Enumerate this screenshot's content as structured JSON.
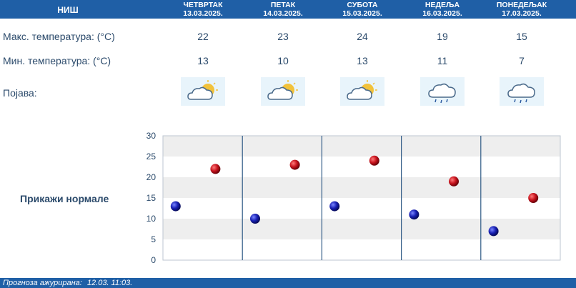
{
  "location": "НИШ",
  "days": [
    {
      "name": "ЧЕТВРТАК",
      "date": "13.03.2025.",
      "max": "22",
      "min": "13",
      "icon": "partly-cloudy-icon"
    },
    {
      "name": "ПЕТАК",
      "date": "14.03.2025.",
      "max": "23",
      "min": "10",
      "icon": "partly-cloudy-icon"
    },
    {
      "name": "СУБОТА",
      "date": "15.03.2025.",
      "max": "24",
      "min": "13",
      "icon": "partly-cloudy-icon"
    },
    {
      "name": "НЕДЕЉА",
      "date": "16.03.2025.",
      "max": "19",
      "min": "11",
      "icon": "rain-cloud-icon"
    },
    {
      "name": "ПОНЕДЕЉАК",
      "date": "17.03.2025.",
      "max": "15",
      "min": "7",
      "icon": "rain-cloud-icon"
    }
  ],
  "labels": {
    "max_temp": "Макс. температура: (°C)",
    "min_temp": "Мин. температура: (°C)",
    "phenomenon": "Појава:"
  },
  "show_normals": "Прикажи нормале",
  "footer": {
    "label": "Прогноза ажурирана:",
    "value": "12.03. 11:03."
  },
  "colors": {
    "header": "#1f5fa6",
    "max_marker": "#c8141e",
    "min_marker": "#1820b4"
  },
  "chart_data": {
    "type": "scatter",
    "categories": [
      "ЧЕТВРТАК",
      "ПЕТАК",
      "СУБОТА",
      "НЕДЕЉА",
      "ПОНЕДЕЉАК"
    ],
    "series": [
      {
        "values": [
          22,
          23,
          24,
          19,
          15
        ]
      },
      {
        "values": [
          13,
          10,
          13,
          11,
          7
        ]
      }
    ],
    "ylim": [
      0,
      30
    ],
    "yticks": [
      "0",
      "5",
      "10",
      "15",
      "20",
      "25",
      "30"
    ],
    "grid": true
  }
}
